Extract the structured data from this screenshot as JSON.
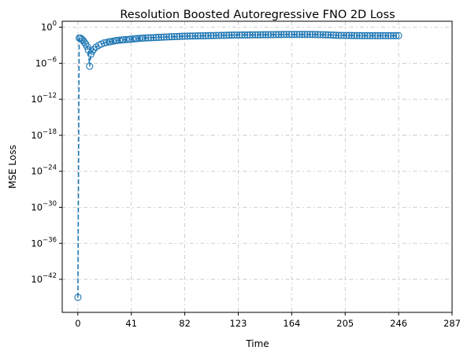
{
  "chart_data": {
    "type": "line",
    "title": "Resolution Boosted Autoregressive FNO 2D Loss",
    "xlabel": "Time",
    "ylabel": "MSE Loss",
    "yscale": "log",
    "grid": true,
    "line_style": "dashed",
    "marker": "open-circle",
    "xlim": [
      -12,
      287
    ],
    "ylim_exp": [
      -47.5,
      1.0
    ],
    "x_ticks": [
      "0",
      "41",
      "82",
      "123",
      "164",
      "205",
      "246",
      "287"
    ],
    "y_ticks": [
      {
        "base": "10",
        "exp": "0"
      },
      {
        "base": "10",
        "exp": "−6"
      },
      {
        "base": "10",
        "exp": "−12"
      },
      {
        "base": "10",
        "exp": "−18"
      },
      {
        "base": "10",
        "exp": "−24"
      },
      {
        "base": "10",
        "exp": "−30"
      },
      {
        "base": "10",
        "exp": "−36"
      },
      {
        "base": "10",
        "exp": "−42"
      }
    ],
    "series": [
      {
        "color": "#1f77b4",
        "points_log10": [
          [
            0,
            -45.0
          ],
          [
            1,
            -1.8
          ],
          [
            2,
            -1.8
          ],
          [
            3,
            -2.0
          ],
          [
            4,
            -2.2
          ],
          [
            5,
            -2.5
          ],
          [
            6,
            -2.8
          ],
          [
            7,
            -3.2
          ],
          [
            8,
            -3.8
          ],
          [
            9,
            -6.5
          ],
          [
            10,
            -4.5
          ],
          [
            11,
            -4.0
          ],
          [
            12,
            -3.7
          ],
          [
            14,
            -3.3
          ],
          [
            16,
            -3.0
          ],
          [
            18,
            -2.8
          ],
          [
            20,
            -2.6
          ],
          [
            25,
            -2.4
          ],
          [
            30,
            -2.2
          ],
          [
            35,
            -2.1
          ],
          [
            40,
            -2.0
          ],
          [
            45,
            -1.9
          ],
          [
            50,
            -1.8
          ],
          [
            60,
            -1.7
          ],
          [
            70,
            -1.6
          ],
          [
            80,
            -1.5
          ],
          [
            100,
            -1.4
          ],
          [
            120,
            -1.3
          ],
          [
            140,
            -1.25
          ],
          [
            160,
            -1.2
          ],
          [
            180,
            -1.2
          ],
          [
            190,
            -1.25
          ],
          [
            200,
            -1.35
          ],
          [
            220,
            -1.4
          ],
          [
            246,
            -1.4
          ]
        ]
      }
    ]
  }
}
